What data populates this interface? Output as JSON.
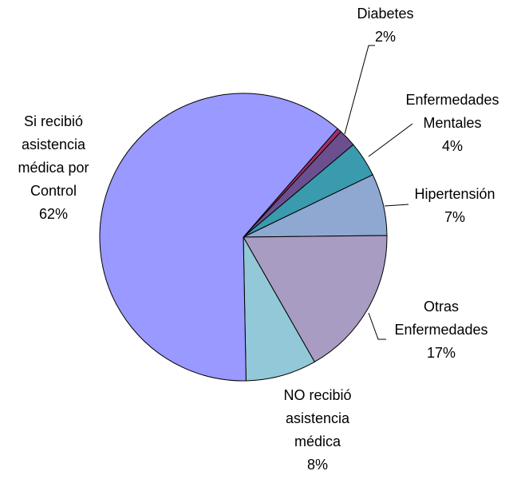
{
  "chart_data": {
    "type": "pie",
    "categories": [
      null,
      "Diabetes",
      "Enfermedades Mentales",
      "Hipertensión",
      "Otras Enfermedades",
      "NO recibió asistencia médica",
      "Si recibió asistencia médica por Control"
    ],
    "values": [
      0.5,
      2,
      4,
      7,
      17,
      8,
      62
    ],
    "value_labels": [
      null,
      "2%",
      "4%",
      "7%",
      "17%",
      "8%",
      "62%"
    ],
    "colors": [
      "#a0306a",
      "#6b4f8f",
      "#3a9aae",
      "#8fa8d2",
      "#a99cc2",
      "#92c8d8",
      "#9999ff"
    ]
  }
}
